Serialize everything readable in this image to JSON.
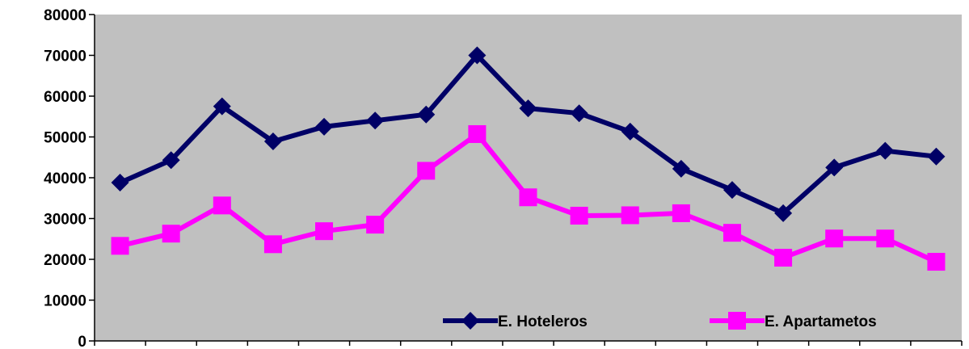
{
  "chart_data": {
    "type": "line",
    "title": "",
    "xlabel": "",
    "ylabel": "",
    "ylim": [
      0,
      80000
    ],
    "yticks": [
      "0",
      "10000",
      "20000",
      "30000",
      "40000",
      "50000",
      "60000",
      "70000",
      "80000"
    ],
    "grid": false,
    "plot_background": "#c0c0c0",
    "legend_position": "bottom-right",
    "x": [
      1,
      2,
      3,
      4,
      5,
      6,
      7,
      8,
      9,
      10,
      11,
      12,
      13,
      14,
      15,
      16,
      17
    ],
    "series": [
      {
        "name": "E. Hoteleros",
        "color": "#000066",
        "marker": "diamond",
        "values": [
          38800,
          44300,
          57500,
          48900,
          52500,
          54000,
          55500,
          70000,
          57000,
          55800,
          51300,
          42200,
          37000,
          31300,
          42500,
          46600,
          45200
        ]
      },
      {
        "name": "E. Apartametos",
        "color": "#ff00ff",
        "marker": "square",
        "values": [
          23300,
          26300,
          33200,
          23700,
          26900,
          28500,
          41700,
          50700,
          35200,
          30700,
          30800,
          31300,
          26500,
          20400,
          25100,
          25100,
          19400
        ]
      }
    ]
  }
}
